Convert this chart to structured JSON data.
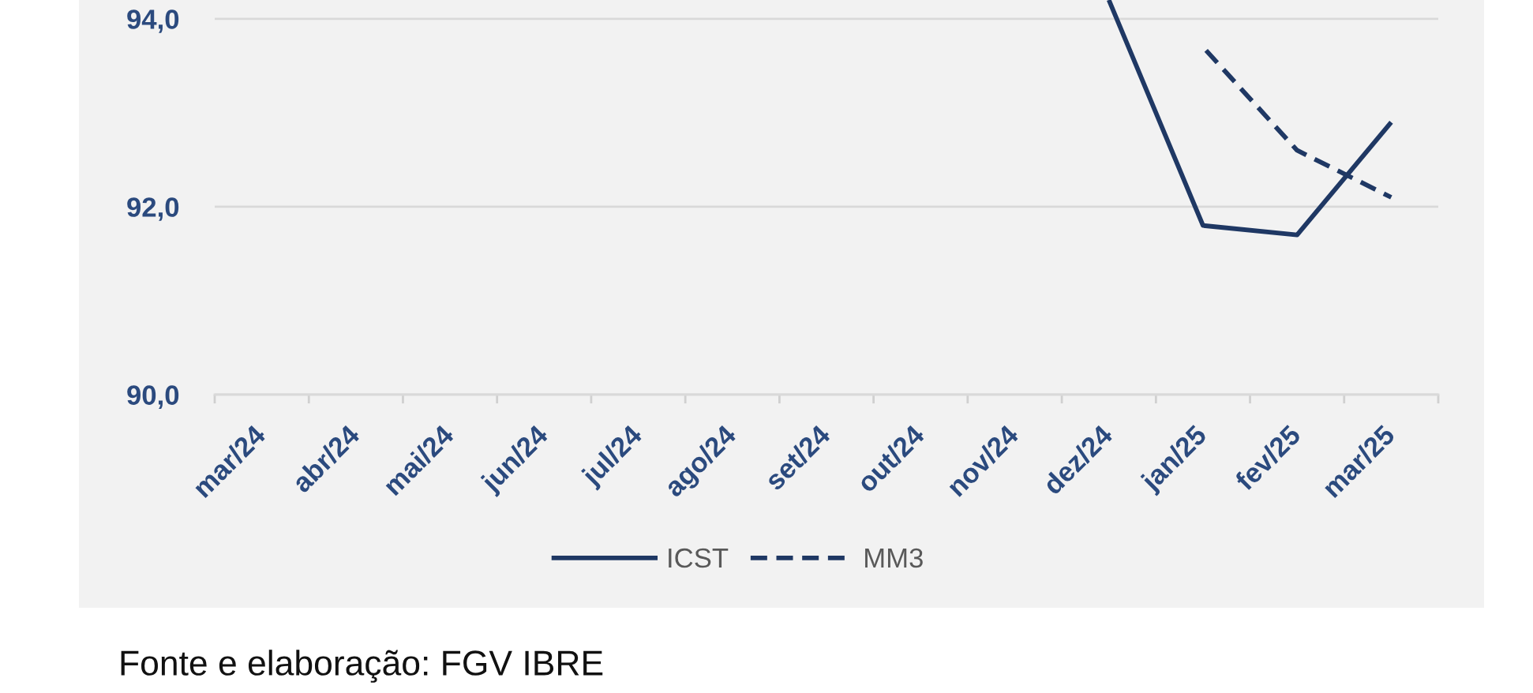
{
  "chart_data": {
    "type": "line",
    "categories": [
      "mar/24",
      "abr/24",
      "mai/24",
      "jun/24",
      "jul/24",
      "ago/24",
      "set/24",
      "out/24",
      "nov/24",
      "dez/24",
      "jan/25",
      "fev/25",
      "mar/25"
    ],
    "series": [
      {
        "name": "ICST",
        "color": "#1f3864",
        "line_style": "solid",
        "values": [
          null,
          null,
          null,
          null,
          null,
          null,
          null,
          null,
          null,
          94.2,
          91.8,
          91.7,
          92.9
        ]
      },
      {
        "name": "MM3",
        "color": "#1f3864",
        "line_style": "dashed",
        "values": [
          null,
          null,
          null,
          null,
          null,
          null,
          null,
          null,
          null,
          null,
          93.7,
          92.6,
          92.1
        ]
      }
    ],
    "ylim": [
      90,
      94.2
    ],
    "yticks": [
      {
        "value": 90,
        "label": "90,0"
      },
      {
        "value": 92,
        "label": "92,0"
      },
      {
        "value": 94,
        "label": "94,0"
      }
    ],
    "grid": "y",
    "legend": "bottom",
    "annotations": [
      "Fonte e elaboração: FGV IBRE"
    ]
  }
}
